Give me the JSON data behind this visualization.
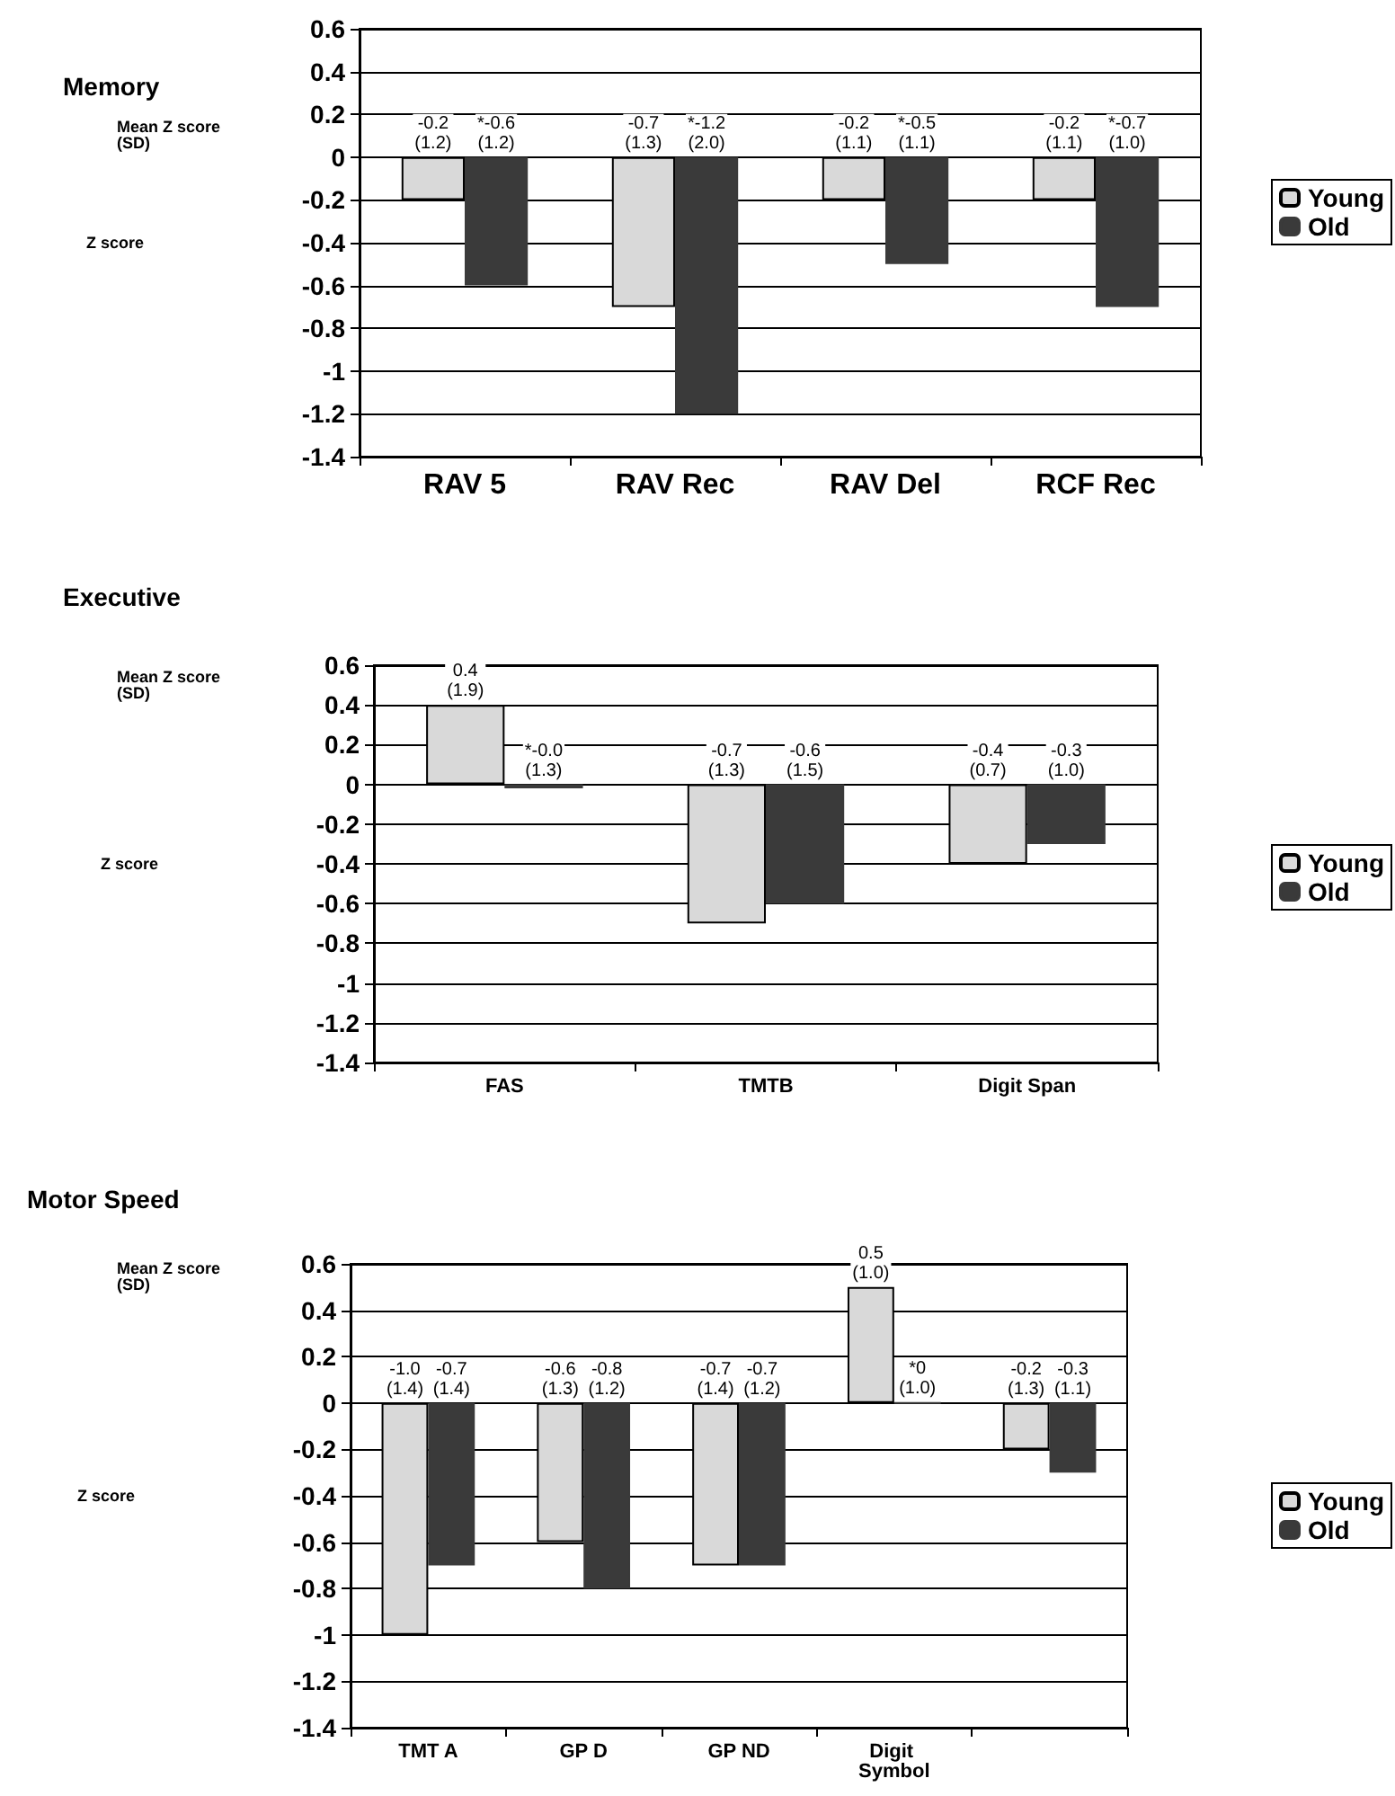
{
  "chart_data": [
    {
      "type": "bar",
      "title": "Memory",
      "ylabel": "Z score",
      "annotations": [
        "Mean Z score (SD)"
      ],
      "categories": [
        "RAV 5",
        "RAV Rec",
        "RAV Del",
        "RCF Rec"
      ],
      "series": [
        {
          "name": "Young",
          "color": "#d9d9d9",
          "values": [
            -0.2,
            -0.7,
            -0.2,
            -0.2
          ],
          "value_labels": [
            "-0.2\n(1.2)",
            "-0.7\n(1.3)",
            "-0.2\n(1.1)",
            "-0.2\n(1.1)"
          ]
        },
        {
          "name": "Old",
          "color": "#3a3a3a",
          "values": [
            -0.6,
            -1.2,
            -0.5,
            -0.7
          ],
          "value_labels": [
            "*-0.6\n(1.2)",
            "*-1.2\n(2.0)",
            "*-0.5\n(1.1)",
            "*-0.7\n(1.0)"
          ]
        }
      ],
      "ylim": [
        -1.4,
        0.6
      ],
      "yticks": [
        -1.4,
        -1.2,
        -1,
        -0.8,
        -0.6,
        -0.4,
        -0.2,
        0,
        0.2,
        0.4,
        0.6
      ],
      "grid": "y",
      "legend": "right"
    },
    {
      "type": "bar",
      "title": "Executive",
      "ylabel": "Z score",
      "annotations": [
        "Mean Z score (SD)"
      ],
      "categories": [
        "FAS",
        "TMTB",
        "Digit Span"
      ],
      "series": [
        {
          "name": "Young",
          "color": "#d9d9d9",
          "values": [
            0.4,
            -0.7,
            -0.4
          ],
          "value_labels": [
            "0.4\n(1.9)",
            "-0.7\n(1.3)",
            "-0.4\n(0.7)"
          ]
        },
        {
          "name": "Old",
          "color": "#3a3a3a",
          "values": [
            -0.02,
            -0.6,
            -0.3
          ],
          "value_labels": [
            "*-0.0\n(1.3)",
            "-0.6\n(1.5)",
            "-0.3\n(1.0)"
          ]
        }
      ],
      "ylim": [
        -1.4,
        0.6
      ],
      "yticks": [
        -1.4,
        -1.2,
        -1,
        -0.8,
        -0.6,
        -0.4,
        -0.2,
        0,
        0.2,
        0.4,
        0.6
      ],
      "grid": "y",
      "legend": "right"
    },
    {
      "type": "bar",
      "title": "Motor Speed",
      "ylabel": "Z score",
      "annotations": [
        "Mean Z score (SD)"
      ],
      "categories": [
        "TMT A",
        "GP D",
        "GP ND",
        "Digit Symbol",
        null
      ],
      "series": [
        {
          "name": "Young",
          "color": "#d9d9d9",
          "values": [
            -1.0,
            -0.6,
            -0.7,
            0.5,
            -0.2
          ],
          "value_labels": [
            "-1.0\n(1.4)",
            "-0.6\n(1.3)",
            "-0.7\n(1.4)",
            "0.5\n(1.0)",
            "-0.2\n(1.3)"
          ]
        },
        {
          "name": "Old",
          "color": "#3a3a3a",
          "values": [
            -0.7,
            -0.8,
            -0.7,
            0,
            -0.3
          ],
          "value_labels": [
            "-0.7\n(1.4)",
            "-0.8\n(1.2)",
            "-0.7\n(1.2)",
            "*0\n(1.0)",
            "-0.3\n(1.1)"
          ]
        }
      ],
      "ylim": [
        -1.4,
        0.6
      ],
      "yticks": [
        -1.4,
        -1.2,
        -1,
        -0.8,
        -0.6,
        -0.4,
        -0.2,
        0,
        0.2,
        0.4,
        0.6
      ],
      "grid": "y",
      "legend": "right"
    }
  ]
}
